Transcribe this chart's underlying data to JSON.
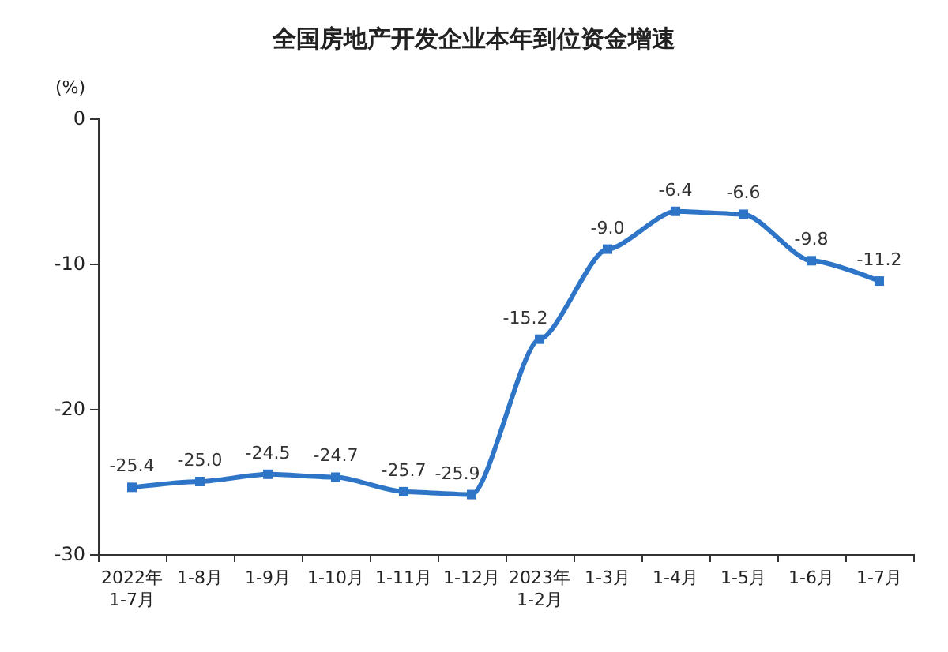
{
  "chart_data": {
    "type": "line",
    "title": "全国房地产开发企业本年到位资金增速",
    "ylabel": "(%)",
    "categories": [
      "2022年\n1-7月",
      "1-8月",
      "1-9月",
      "1-10月",
      "1-11月",
      "1-12月",
      "2023年\n1-2月",
      "1-3月",
      "1-4月",
      "1-5月",
      "1-6月",
      "1-7月"
    ],
    "series": [
      {
        "color": "#2e75c8",
        "values": [
          -25.4,
          -25.0,
          -24.5,
          -24.7,
          -25.7,
          -25.9,
          -15.2,
          -9.0,
          -6.4,
          -6.6,
          -9.8,
          -11.2
        ],
        "value_labels": [
          "-25.4",
          "-25.0",
          "-24.5",
          "-24.7",
          "-25.7",
          "-25.9",
          "-15.2",
          "-9.0",
          "-6.4",
          "-6.6",
          "-9.8",
          "-11.2"
        ]
      }
    ],
    "ylim": [
      -30,
      0
    ],
    "yticks": [
      -30,
      -20,
      -10,
      0
    ],
    "grid": false,
    "marker": "square",
    "line_style": "solid"
  }
}
